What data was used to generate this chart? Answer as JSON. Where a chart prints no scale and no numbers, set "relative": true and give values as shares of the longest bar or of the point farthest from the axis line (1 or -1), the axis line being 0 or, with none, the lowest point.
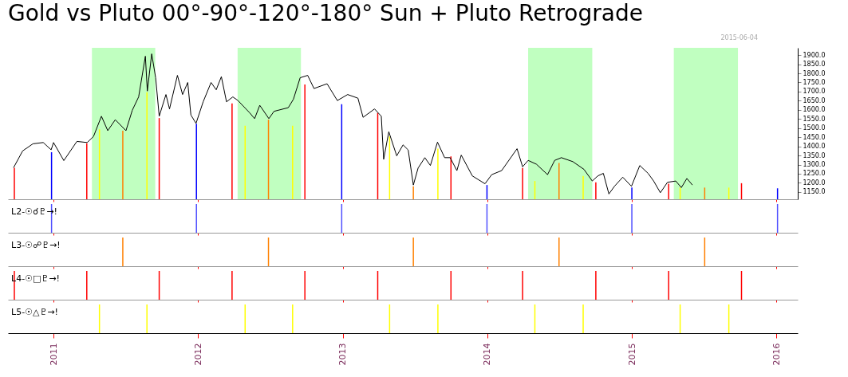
{
  "chart_data": [
    {
      "type": "line",
      "title": "Gold vs Pluto 00°-90°-120°-180° Sun + Pluto Retrograde",
      "annotations": [
        "2015-06-04"
      ],
      "tick_labels": "y",
      "xlim": [
        "2010-09-18",
        "2016-02-14"
      ],
      "xticks": [
        "2011",
        "2012",
        "2013",
        "2014",
        "2015",
        "2016"
      ],
      "ylim": [
        1110,
        1940
      ],
      "yticks": [
        {
          "value": 1150,
          "label": "1150.0"
        },
        {
          "value": 1200,
          "label": "1200.0"
        },
        {
          "value": 1250,
          "label": "1250.0"
        },
        {
          "value": 1300,
          "label": "1300.0"
        },
        {
          "value": 1350,
          "label": "1350.0"
        },
        {
          "value": 1400,
          "label": "1400.0"
        },
        {
          "value": 1450,
          "label": "1450.0"
        },
        {
          "value": 1500,
          "label": "1500.0"
        },
        {
          "value": 1550,
          "label": "1550.0"
        },
        {
          "value": 1600,
          "label": "1600.0"
        },
        {
          "value": 1650,
          "label": "1650.0"
        },
        {
          "value": 1700,
          "label": "1700.0"
        },
        {
          "value": 1750,
          "label": "1750.0"
        },
        {
          "value": 1800,
          "label": "1800.0"
        },
        {
          "value": 1850,
          "label": "1850.0"
        },
        {
          "value": 1900,
          "label": "1900.0"
        }
      ],
      "bands": [
        {
          "axis": "x",
          "from": "2011-04-08",
          "to": "2011-09-15",
          "color": "#c0ffc0"
        },
        {
          "axis": "x",
          "from": "2012-04-10",
          "to": "2012-09-17",
          "color": "#c0ffc0"
        },
        {
          "axis": "x",
          "from": "2014-04-14",
          "to": "2014-09-23",
          "color": "#c0ffc0"
        },
        {
          "axis": "x",
          "from": "2015-04-17",
          "to": "2015-09-26",
          "color": "#c0ffc0"
        }
      ],
      "series": [
        {
          "type": "bar",
          "color": "#0000ff",
          "x": [
            "2010-12-27",
            "2011-12-28",
            "2012-12-29",
            "2013-12-31",
            "2015-01-01",
            "2016-01-04"
          ],
          "values": [
            1368,
            1524,
            1631,
            1188,
            1174,
            1170
          ]
        },
        {
          "type": "bar",
          "color": "#ff8000",
          "x": [
            "2011-06-25",
            "2012-06-27",
            "2013-06-28",
            "2014-07-01",
            "2015-07-04"
          ],
          "values": [
            1486,
            1546,
            1181,
            1309,
            1174
          ]
        },
        {
          "type": "bar",
          "color": "#ff0000",
          "x": [
            "2010-09-24",
            "2011-03-26",
            "2011-09-25",
            "2012-03-27",
            "2012-09-27",
            "2013-03-30",
            "2013-10-01",
            "2014-03-31",
            "2014-10-02",
            "2015-04-04",
            "2015-10-05"
          ],
          "values": [
            1283,
            1417,
            1555,
            1635,
            1739,
            1583,
            1345,
            1281,
            1203,
            1195,
            1198
          ]
        },
        {
          "type": "bar",
          "color": "#ffff00",
          "x": [
            "2011-04-27",
            "2011-08-25",
            "2012-04-29",
            "2012-08-27",
            "2013-04-29",
            "2013-08-29",
            "2014-05-01",
            "2014-08-31",
            "2015-05-03",
            "2015-09-03"
          ],
          "values": [
            1493,
            1697,
            1513,
            1513,
            1454,
            1387,
            1210,
            1238,
            1174,
            1174
          ]
        },
        {
          "type": "line",
          "color": "#000000",
          "x": [
            "2010-09-22",
            "2010-10-15",
            "2010-11-10",
            "2010-12-06",
            "2010-12-26",
            "2011-01-01",
            "2011-01-27",
            "2011-03-01",
            "2011-03-27",
            "2011-04-12",
            "2011-05-02",
            "2011-05-18",
            "2011-06-06",
            "2011-07-03",
            "2011-07-19",
            "2011-08-04",
            "2011-08-21",
            "2011-08-26",
            "2011-09-06",
            "2011-09-16",
            "2011-09-25",
            "2011-10-12",
            "2011-10-21",
            "2011-11-10",
            "2011-11-23",
            "2011-12-06",
            "2011-12-14",
            "2011-12-27",
            "2012-01-14",
            "2012-02-03",
            "2012-02-16",
            "2012-02-29",
            "2012-03-13",
            "2012-03-29",
            "2012-04-11",
            "2012-05-10",
            "2012-05-23",
            "2012-06-05",
            "2012-06-28",
            "2012-07-11",
            "2012-08-16",
            "2012-08-29",
            "2012-09-15",
            "2012-10-04",
            "2012-10-20",
            "2012-11-22",
            "2012-12-18",
            "2013-01-13",
            "2013-02-08",
            "2013-02-21",
            "2013-03-22",
            "2013-04-08",
            "2013-04-14",
            "2013-04-27",
            "2013-05-17",
            "2013-06-02",
            "2013-06-15",
            "2013-06-28",
            "2013-07-10",
            "2013-07-27",
            "2013-08-10",
            "2013-08-28",
            "2013-09-15",
            "2013-09-29",
            "2013-10-16",
            "2013-10-27",
            "2013-11-24",
            "2013-12-26",
            "2014-01-12",
            "2014-02-06",
            "2014-03-17",
            "2014-03-31",
            "2014-04-14",
            "2014-05-05",
            "2014-06-02",
            "2014-06-20",
            "2014-07-07",
            "2014-08-05",
            "2014-09-02",
            "2014-09-23",
            "2014-10-07",
            "2014-10-21",
            "2014-11-04",
            "2014-11-18",
            "2014-12-09",
            "2014-12-31",
            "2015-01-21",
            "2015-02-11",
            "2015-02-25",
            "2015-03-14",
            "2015-04-01",
            "2015-04-22",
            "2015-05-06",
            "2015-05-20",
            "2015-06-03"
          ],
          "values": [
            1283,
            1375,
            1414,
            1421,
            1381,
            1421,
            1322,
            1427,
            1421,
            1454,
            1565,
            1486,
            1546,
            1486,
            1598,
            1671,
            1894,
            1703,
            1907,
            1776,
            1565,
            1684,
            1605,
            1789,
            1684,
            1750,
            1572,
            1526,
            1644,
            1750,
            1710,
            1782,
            1644,
            1671,
            1651,
            1585,
            1552,
            1625,
            1552,
            1592,
            1612,
            1658,
            1776,
            1789,
            1717,
            1743,
            1651,
            1684,
            1664,
            1559,
            1605,
            1565,
            1329,
            1480,
            1348,
            1408,
            1380,
            1188,
            1281,
            1338,
            1295,
            1423,
            1338,
            1338,
            1267,
            1352,
            1238,
            1195,
            1245,
            1267,
            1387,
            1288,
            1323,
            1302,
            1245,
            1323,
            1338,
            1316,
            1274,
            1210,
            1238,
            1252,
            1139,
            1181,
            1231,
            1181,
            1295,
            1252,
            1210,
            1146,
            1203,
            1210,
            1174,
            1224,
            1188
          ]
        }
      ]
    },
    {
      "type": "bar",
      "relative": true,
      "title": "L2-☉☌♇→!",
      "color": "#5050ff",
      "tick_labels": false,
      "xlim": [
        "2010-09-18",
        "2016-02-14"
      ],
      "xticks": [
        "2011",
        "2012",
        "2013",
        "2014",
        "2015",
        "2016"
      ],
      "x": [
        "2010-12-27",
        "2011-12-28",
        "2012-12-29",
        "2013-12-31",
        "2015-01-01",
        "2016-01-04"
      ],
      "values": [
        1,
        1,
        1,
        1,
        1,
        1
      ]
    },
    {
      "type": "bar",
      "relative": true,
      "title": "L3-☉☍♇→!",
      "color": "#ff8000",
      "tick_labels": false,
      "xlim": [
        "2010-09-18",
        "2016-02-14"
      ],
      "xticks": [
        "2011",
        "2012",
        "2013",
        "2014",
        "2015",
        "2016"
      ],
      "x": [
        "2011-06-25",
        "2012-06-27",
        "2013-06-28",
        "2014-07-01",
        "2015-07-04"
      ],
      "values": [
        1,
        1,
        1,
        1,
        1
      ]
    },
    {
      "type": "bar",
      "relative": true,
      "title": "L4-☉□♇→!",
      "color": "#ff0000",
      "tick_labels": false,
      "xlim": [
        "2010-09-18",
        "2016-02-14"
      ],
      "xticks": [
        "2011",
        "2012",
        "2013",
        "2014",
        "2015",
        "2016"
      ],
      "x": [
        "2010-09-24",
        "2011-03-26",
        "2011-09-25",
        "2012-03-27",
        "2012-09-27",
        "2013-03-30",
        "2013-10-01",
        "2014-03-31",
        "2014-10-02",
        "2015-04-04",
        "2015-10-05"
      ],
      "values": [
        1,
        1,
        1,
        1,
        1,
        1,
        1,
        1,
        1,
        1,
        1
      ]
    },
    {
      "type": "bar",
      "relative": true,
      "title": "L5-☉△♇→!",
      "color": "#ffff00",
      "tick_labels": "x",
      "xlim": [
        "2010-09-18",
        "2016-02-14"
      ],
      "xticks": [
        "2011",
        "2012",
        "2013",
        "2014",
        "2015",
        "2016"
      ],
      "x": [
        "2011-04-27",
        "2011-08-25",
        "2012-04-29",
        "2012-08-27",
        "2013-04-29",
        "2013-08-29",
        "2014-05-01",
        "2014-08-31",
        "2015-05-03",
        "2015-09-03"
      ],
      "values": [
        1,
        1,
        1,
        1,
        1,
        1,
        1,
        1,
        1,
        1
      ]
    }
  ]
}
